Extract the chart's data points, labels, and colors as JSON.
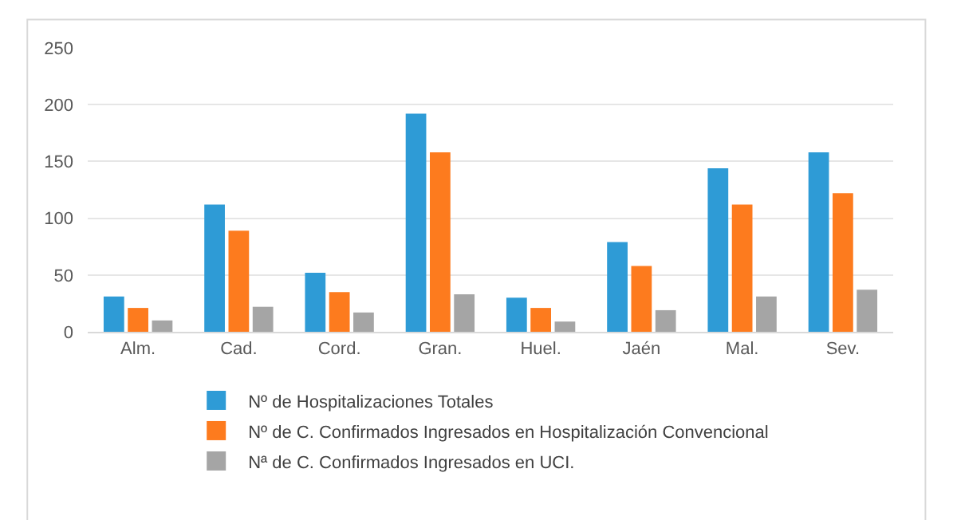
{
  "chart_data": {
    "type": "bar",
    "categories": [
      "Alm.",
      "Cad.",
      "Cord.",
      "Gran.",
      "Huel.",
      "Jaén",
      "Mal.",
      "Sev."
    ],
    "series": [
      {
        "name": "Nº de Hospitalizaciones Totales",
        "color": "#2e9bd6",
        "values": [
          31,
          112,
          52,
          192,
          30,
          79,
          144,
          158
        ]
      },
      {
        "name": "Nº de C. Confirmados Ingresados en Hospitalización Convencional",
        "color": "#fd7b1e",
        "values": [
          21,
          89,
          35,
          158,
          21,
          58,
          112,
          122
        ]
      },
      {
        "name": "Nª de C. Confirmados Ingresados en UCI.",
        "color": "#a5a5a5",
        "values": [
          10,
          22,
          17,
          33,
          9,
          19,
          31,
          37
        ]
      }
    ],
    "ylim": [
      0,
      250
    ],
    "yticks": [
      0,
      50,
      100,
      150,
      200,
      250
    ],
    "grid": "y",
    "legend": "bottom"
  }
}
